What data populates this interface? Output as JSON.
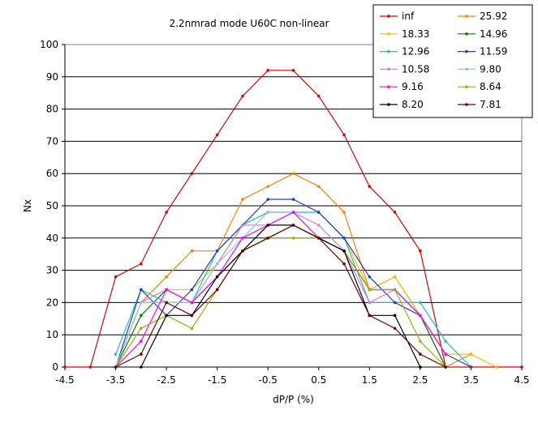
{
  "chart_data": {
    "type": "line",
    "title": "2.2nmrad mode U60C non-linear",
    "xlabel": "dP/P (%)",
    "ylabel": "Nx",
    "xlim": [
      -4.5,
      4.5
    ],
    "ylim": [
      0,
      100
    ],
    "x_ticks": [
      -4.5,
      -3.5,
      -2.5,
      -1.5,
      -0.5,
      0.5,
      1.5,
      2.5,
      3.5,
      4.5
    ],
    "x_tick_labels": [
      "-4.5",
      "-3.5",
      "-2.5",
      "-1.5",
      "-0.5",
      "0.5",
      "1.5",
      "2.5",
      "3.5",
      "4.5"
    ],
    "y_ticks": [
      0,
      10,
      20,
      30,
      40,
      50,
      60,
      70,
      80,
      90,
      100
    ],
    "y_tick_labels": [
      "0",
      "10",
      "20",
      "30",
      "40",
      "50",
      "60",
      "70",
      "80",
      "90",
      "100"
    ],
    "grid": "horizontal",
    "legend_position": "top-right",
    "x": [
      -4.5,
      -4,
      -3.5,
      -3,
      -2.5,
      -2,
      -1.5,
      -1,
      -0.5,
      0,
      0.5,
      1,
      1.5,
      2,
      2.5,
      3,
      3.5,
      4,
      4.5
    ],
    "series": [
      {
        "name": "inf",
        "color": "#e00000",
        "values": [
          0,
          0,
          28,
          32,
          48,
          60,
          72,
          84,
          92,
          92,
          84,
          72,
          56,
          48,
          36,
          0,
          0,
          0,
          0
        ]
      },
      {
        "name": "25.92",
        "color": "#ff7f00",
        "values": [
          null,
          null,
          0,
          20,
          28,
          36,
          36,
          52,
          56,
          60,
          56,
          48,
          24,
          28,
          16,
          0,
          4,
          null,
          null
        ]
      },
      {
        "name": "18.33",
        "color": "#f0c000",
        "values": [
          null,
          null,
          0,
          20,
          24,
          24,
          32,
          44,
          48,
          48,
          48,
          40,
          24,
          28,
          16,
          4,
          4,
          0,
          null
        ]
      },
      {
        "name": "14.96",
        "color": "#008000",
        "values": [
          null,
          null,
          0,
          16,
          24,
          20,
          28,
          36,
          40,
          44,
          40,
          36,
          24,
          24,
          16,
          0,
          null,
          null,
          null
        ]
      },
      {
        "name": "12.96",
        "color": "#20c0c0",
        "values": [
          null,
          null,
          4,
          24,
          20,
          20,
          36,
          44,
          48,
          48,
          48,
          40,
          20,
          20,
          20,
          8,
          0,
          null,
          null
        ]
      },
      {
        "name": "11.59",
        "color": "#2040c0",
        "values": [
          null,
          null,
          0,
          24,
          16,
          24,
          36,
          44,
          52,
          52,
          48,
          40,
          28,
          20,
          16,
          4,
          0,
          null,
          null
        ]
      },
      {
        "name": "10.58",
        "color": "#d080e0",
        "values": [
          null,
          null,
          0,
          20,
          24,
          20,
          32,
          44,
          44,
          48,
          44,
          36,
          20,
          24,
          16,
          4,
          null,
          null,
          null
        ]
      },
      {
        "name": "9.80",
        "color": "#90c0ff",
        "values": [
          null,
          null,
          0,
          20,
          20,
          20,
          32,
          40,
          48,
          48,
          40,
          36,
          24,
          24,
          16,
          4,
          null,
          null,
          null
        ]
      },
      {
        "name": "9.16",
        "color": "#ff00ff",
        "values": [
          null,
          null,
          0,
          8,
          24,
          20,
          28,
          40,
          44,
          48,
          40,
          36,
          24,
          24,
          16,
          4,
          null,
          null,
          null
        ]
      },
      {
        "name": "8.64",
        "color": "#a0b000",
        "values": [
          null,
          null,
          0,
          12,
          16,
          12,
          24,
          36,
          40,
          40,
          40,
          36,
          24,
          24,
          8,
          0,
          null,
          null,
          null
        ]
      },
      {
        "name": "8.20",
        "color": "#000000",
        "values": [
          null,
          null,
          null,
          0,
          16,
          16,
          28,
          36,
          44,
          44,
          40,
          36,
          16,
          16,
          0,
          null,
          null,
          null,
          null
        ]
      },
      {
        "name": "7.81",
        "color": "#700000",
        "values": [
          null,
          null,
          0,
          4,
          20,
          16,
          24,
          36,
          40,
          44,
          40,
          32,
          16,
          12,
          4,
          0,
          null,
          null,
          null
        ]
      }
    ]
  }
}
